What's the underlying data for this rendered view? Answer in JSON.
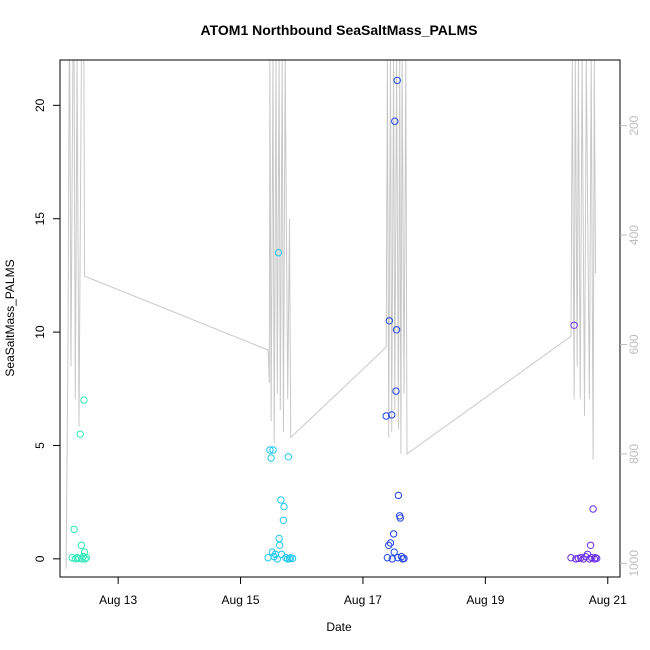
{
  "chart_data": {
    "type": "scatter",
    "title": "ATOM1 Northbound SeaSaltMass_PALMS",
    "xlabel": "Date",
    "ylabel": "SeaSaltMass_PALMS",
    "x_ticks": [
      "Aug 13",
      "Aug 15",
      "Aug 17",
      "Aug 19",
      "Aug 21"
    ],
    "x_tick_days": [
      13,
      15,
      17,
      19,
      21
    ],
    "xlim_days": [
      12.05,
      21.2
    ],
    "ylim": [
      -0.8,
      22
    ],
    "y_ticks": [
      0,
      5,
      10,
      15,
      20
    ],
    "y2_ticks": [
      200,
      400,
      600,
      800,
      1000
    ],
    "y2_lim": [
      1025,
      80
    ],
    "y2_inverted": true,
    "grid": false,
    "series": [
      {
        "color": "#2ee8b8",
        "points": [
          [
            12.25,
            0.05
          ],
          [
            12.28,
            1.3
          ],
          [
            12.3,
            0.0
          ],
          [
            12.33,
            0.05
          ],
          [
            12.36,
            0.02
          ],
          [
            12.38,
            5.5
          ],
          [
            12.4,
            0.6
          ],
          [
            12.41,
            0.0
          ],
          [
            12.43,
            0.1
          ],
          [
            12.44,
            7.0
          ],
          [
            12.45,
            0.3
          ],
          [
            12.46,
            0.0
          ],
          [
            12.48,
            0.05
          ]
        ]
      },
      {
        "color": "#20c8f0",
        "points": [
          [
            15.45,
            0.05
          ],
          [
            15.48,
            4.8
          ],
          [
            15.5,
            4.45
          ],
          [
            15.52,
            0.3
          ],
          [
            15.53,
            4.8
          ],
          [
            15.55,
            0.1
          ],
          [
            15.57,
            0.2
          ],
          [
            15.6,
            0.0
          ],
          [
            15.62,
            13.5
          ],
          [
            15.63,
            0.9
          ],
          [
            15.64,
            0.6
          ],
          [
            15.66,
            2.6
          ],
          [
            15.67,
            0.2
          ],
          [
            15.7,
            1.7
          ],
          [
            15.71,
            2.3
          ],
          [
            15.74,
            0.05
          ],
          [
            15.77,
            0.0
          ],
          [
            15.78,
            4.5
          ],
          [
            15.8,
            0.0
          ],
          [
            15.82,
            0.05
          ],
          [
            15.85,
            0.02
          ]
        ]
      },
      {
        "color": "#2244e8",
        "points": [
          [
            17.38,
            6.3
          ],
          [
            17.4,
            0.05
          ],
          [
            17.42,
            0.6
          ],
          [
            17.43,
            10.5
          ],
          [
            17.45,
            0.7
          ],
          [
            17.47,
            6.35
          ],
          [
            17.48,
            0.0
          ],
          [
            17.5,
            1.1
          ],
          [
            17.51,
            0.3
          ],
          [
            17.52,
            19.3
          ],
          [
            17.54,
            7.4
          ],
          [
            17.55,
            10.1
          ],
          [
            17.56,
            21.1
          ],
          [
            17.57,
            0.05
          ],
          [
            17.58,
            2.8
          ],
          [
            17.6,
            1.9
          ],
          [
            17.61,
            1.8
          ],
          [
            17.63,
            0.1
          ],
          [
            17.65,
            0.0
          ],
          [
            17.67,
            0.02
          ]
        ]
      },
      {
        "color": "#6a2ee8",
        "points": [
          [
            20.4,
            0.05
          ],
          [
            20.45,
            10.3
          ],
          [
            20.48,
            0.0
          ],
          [
            20.52,
            0.02
          ],
          [
            20.56,
            0.05
          ],
          [
            20.6,
            0.0
          ],
          [
            20.64,
            0.1
          ],
          [
            20.67,
            0.2
          ],
          [
            20.7,
            0.0
          ],
          [
            20.72,
            0.6
          ],
          [
            20.74,
            0.05
          ],
          [
            20.76,
            2.2
          ],
          [
            20.78,
            0.0
          ],
          [
            20.8,
            0.05
          ],
          [
            20.82,
            0.02
          ]
        ]
      }
    ],
    "altitude_trace": {
      "color": "#c8c8c8",
      "points": [
        [
          12.15,
          1010
        ],
        [
          12.18,
          600
        ],
        [
          12.2,
          80
        ],
        [
          12.21,
          80
        ],
        [
          12.23,
          640
        ],
        [
          12.26,
          80
        ],
        [
          12.28,
          80
        ],
        [
          12.3,
          700
        ],
        [
          12.33,
          80
        ],
        [
          12.36,
          750
        ],
        [
          12.4,
          80
        ],
        [
          12.44,
          80
        ],
        [
          12.45,
          475
        ],
        [
          15.45,
          610
        ],
        [
          15.47,
          670
        ],
        [
          15.48,
          80
        ],
        [
          15.5,
          740
        ],
        [
          15.53,
          80
        ],
        [
          15.55,
          780
        ],
        [
          15.58,
          80
        ],
        [
          15.6,
          690
        ],
        [
          15.63,
          80
        ],
        [
          15.65,
          720
        ],
        [
          15.68,
          80
        ],
        [
          15.7,
          760
        ],
        [
          15.73,
          80
        ],
        [
          15.77,
          700
        ],
        [
          15.8,
          370
        ],
        [
          15.82,
          770
        ],
        [
          17.38,
          605
        ],
        [
          17.4,
          80
        ],
        [
          17.42,
          770
        ],
        [
          17.45,
          80
        ],
        [
          17.47,
          760
        ],
        [
          17.5,
          80
        ],
        [
          17.52,
          720
        ],
        [
          17.55,
          80
        ],
        [
          17.58,
          755
        ],
        [
          17.6,
          80
        ],
        [
          17.62,
          800
        ],
        [
          17.64,
          80
        ],
        [
          17.67,
          690
        ],
        [
          17.7,
          80
        ],
        [
          17.72,
          800
        ],
        [
          20.4,
          585
        ],
        [
          20.42,
          80
        ],
        [
          20.45,
          700
        ],
        [
          20.47,
          80
        ],
        [
          20.5,
          640
        ],
        [
          20.52,
          80
        ],
        [
          20.55,
          700
        ],
        [
          20.58,
          80
        ],
        [
          20.62,
          730
        ],
        [
          20.65,
          80
        ],
        [
          20.7,
          700
        ],
        [
          20.73,
          80
        ],
        [
          20.76,
          810
        ],
        [
          20.78,
          80
        ],
        [
          20.8,
          470
        ]
      ]
    }
  }
}
